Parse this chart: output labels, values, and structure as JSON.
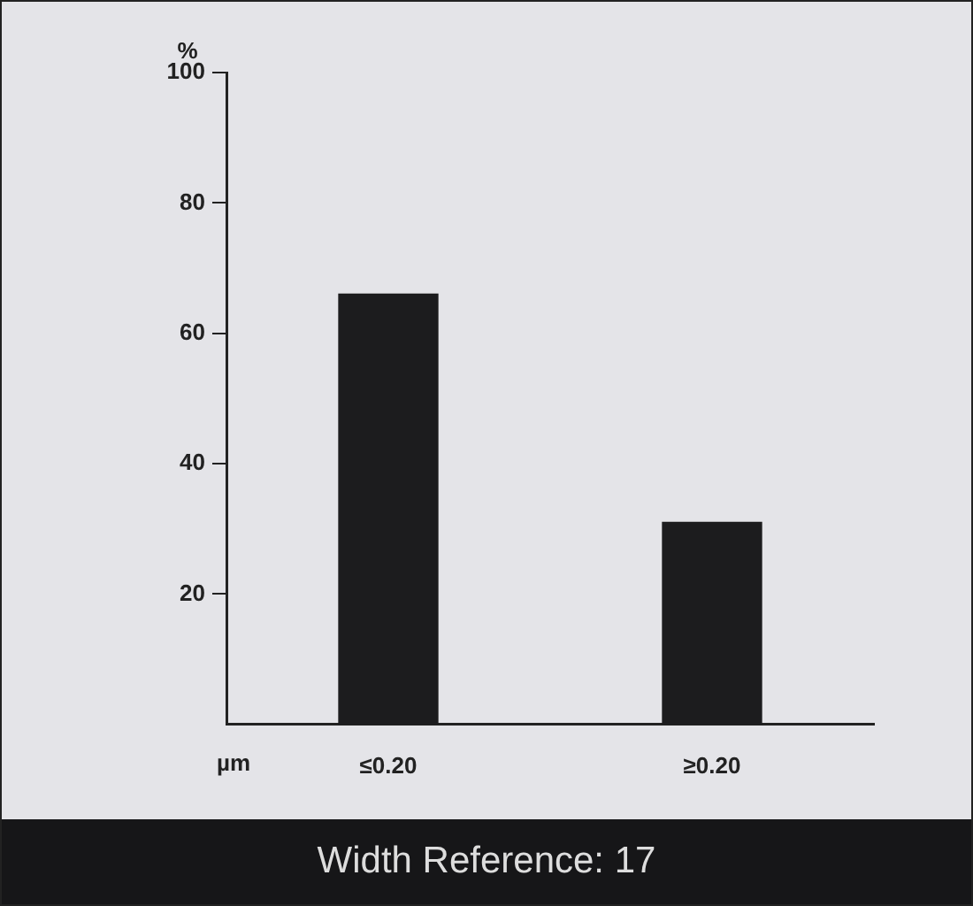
{
  "chart_data": {
    "type": "bar",
    "xlabel": "µm",
    "ylabel": "%",
    "categories": [
      "≤0.20",
      "≥0.20"
    ],
    "values": [
      66,
      31
    ],
    "color": "#1c1c1e",
    "ylim": [
      0,
      100
    ],
    "yticks": [
      20,
      40,
      60,
      80,
      100
    ],
    "grid": false,
    "legend": false,
    "annotations": [
      "Width Reference: 17"
    ]
  }
}
